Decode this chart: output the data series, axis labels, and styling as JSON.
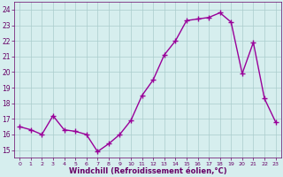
{
  "hours": [
    0,
    1,
    2,
    3,
    4,
    5,
    6,
    7,
    8,
    9,
    10,
    11,
    12,
    13,
    14,
    15,
    16,
    17,
    18,
    19,
    20,
    21,
    22,
    23
  ],
  "values": [
    16.5,
    16.3,
    16.0,
    17.2,
    16.3,
    16.2,
    16.0,
    14.9,
    15.4,
    16.0,
    16.9,
    18.5,
    19.5,
    21.1,
    22.0,
    23.3,
    23.4,
    23.5,
    23.8,
    23.2,
    19.9,
    21.9,
    18.3,
    16.8
  ],
  "line_color": "#990099",
  "marker": "+",
  "marker_size": 4,
  "bg_color": "#d6eeee",
  "grid_color": "#aacccc",
  "xlabel": "Windchill (Refroidissement éolien,°C)",
  "xlabel_color": "#660066",
  "tick_color": "#660066",
  "spine_color": "#660066",
  "ylim": [
    14.5,
    24.5
  ],
  "yticks": [
    15,
    16,
    17,
    18,
    19,
    20,
    21,
    22,
    23,
    24
  ],
  "xlim": [
    -0.5,
    23.5
  ],
  "xticks": [
    0,
    1,
    2,
    3,
    4,
    5,
    6,
    7,
    8,
    9,
    10,
    11,
    12,
    13,
    14,
    15,
    16,
    17,
    18,
    19,
    20,
    21,
    22,
    23
  ],
  "linewidth": 1.0,
  "tick_labelsize": 5.5,
  "xlabel_fontsize": 6.0
}
